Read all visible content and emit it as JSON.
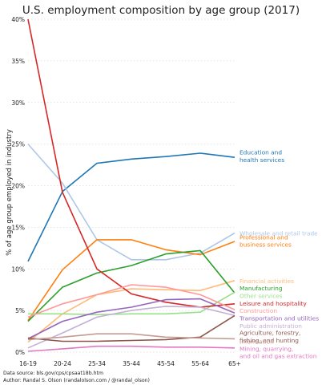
{
  "chart_data": {
    "type": "line",
    "title": "U.S. employment composition by age group (2017)",
    "xlabel": "",
    "ylabel": "% of age group employed in industry",
    "categories": [
      "16-19",
      "20-24",
      "25-34",
      "35-44",
      "45-54",
      "55-64",
      "65+"
    ],
    "ylim": [
      0,
      40
    ],
    "yticks": [
      "0%",
      "5%",
      "10%",
      "15%",
      "20%",
      "25%",
      "30%",
      "35%",
      "40%"
    ],
    "grid": "horizontal dotted",
    "legend": "direct labels at right end of lines",
    "series": [
      {
        "name": "Education and health services",
        "color": "#1f77b4",
        "values": [
          10.9,
          19.3,
          22.7,
          23.2,
          23.5,
          23.9,
          23.4
        ]
      },
      {
        "name": "Wholesale and retail trade",
        "color": "#aec7e8",
        "values": [
          25.0,
          20.3,
          13.5,
          11.1,
          11.1,
          11.9,
          14.3
        ]
      },
      {
        "name": "Professional and business services",
        "color": "#ff7f0e",
        "values": [
          3.8,
          9.9,
          13.5,
          13.5,
          12.3,
          11.7,
          13.3
        ]
      },
      {
        "name": "Financial activities",
        "color": "#ffbb78",
        "values": [
          1.2,
          4.6,
          6.9,
          7.6,
          7.5,
          7.4,
          8.6
        ]
      },
      {
        "name": "Manufacturing",
        "color": "#2ca02c",
        "values": [
          3.7,
          7.8,
          9.5,
          10.4,
          11.8,
          12.2,
          7.1
        ]
      },
      {
        "name": "Other services",
        "color": "#98df8a",
        "values": [
          4.6,
          4.6,
          4.5,
          4.6,
          4.6,
          4.8,
          7.2
        ]
      },
      {
        "name": "Leisure and hospitality",
        "color": "#d62728",
        "values": [
          40.0,
          19.2,
          10.0,
          7.0,
          6.0,
          5.4,
          5.8
        ]
      },
      {
        "name": "Construction",
        "color": "#ff9896",
        "values": [
          4.2,
          5.8,
          6.9,
          8.1,
          7.8,
          6.9,
          5.1
        ]
      },
      {
        "name": "Transportation and utilities",
        "color": "#9467bd",
        "values": [
          1.6,
          3.7,
          4.8,
          5.4,
          6.3,
          6.4,
          4.7
        ]
      },
      {
        "name": "Public administration",
        "color": "#c5b0d5",
        "values": [
          0.5,
          2.3,
          4.2,
          5.0,
          5.5,
          5.4,
          4.4
        ]
      },
      {
        "name": "Agriculture, forestry, fishing, and hunting",
        "color": "#8c564b",
        "values": [
          1.7,
          1.3,
          1.3,
          1.4,
          1.5,
          1.8,
          4.4
        ]
      },
      {
        "name": "Information",
        "color": "#c49c94",
        "values": [
          1.5,
          1.8,
          2.2,
          2.2,
          1.8,
          1.7,
          1.6
        ]
      },
      {
        "name": "Mining, quarrying, and oil and gas extraction",
        "color": "#e377c2",
        "values": [
          0.1,
          0.4,
          0.7,
          0.7,
          0.6,
          0.6,
          0.5
        ]
      }
    ],
    "labels": [
      {
        "lines": [
          "Education and",
          "health services"
        ],
        "color": "#1f77b4",
        "y": 23.6
      },
      {
        "lines": [
          "Wholesale and retail trade"
        ],
        "color": "#aec7e8",
        "y": 14.3
      },
      {
        "lines": [
          "Professional and",
          "business services"
        ],
        "color": "#ff7f0e",
        "y": 13.4
      },
      {
        "lines": [
          "Financial activities"
        ],
        "color": "#ffbb78",
        "y": 8.6
      },
      {
        "lines": [
          "Manufacturing"
        ],
        "color": "#2ca02c",
        "y": 7.7
      },
      {
        "lines": [
          "Other services"
        ],
        "color": "#98df8a",
        "y": 6.8
      },
      {
        "lines": [
          "Leisure and hospitality"
        ],
        "color": "#d62728",
        "y": 5.9
      },
      {
        "lines": [
          "Construction"
        ],
        "color": "#ff9896",
        "y": 5.0
      },
      {
        "lines": [
          "Transportation and utilities"
        ],
        "color": "#9467bd",
        "y": 4.1
      },
      {
        "lines": [
          "Public administration"
        ],
        "color": "#c5b0d5",
        "y": 3.2
      },
      {
        "lines": [
          "Agriculture, forestry,",
          "fishing, and hunting"
        ],
        "color": "#8c564b",
        "y": 1.9
      },
      {
        "lines": [
          "Information"
        ],
        "color": "#c49c94",
        "y": 1.3
      },
      {
        "lines": [
          "Mining, quarrying,",
          "and oil and gas extraction"
        ],
        "color": "#e377c2",
        "y": 0.0
      }
    ]
  },
  "footer": {
    "source": "Data source: bls.gov/cps/cpsaat18b.htm",
    "author": "Author: Randal S. Olson (randalolson.com / @randal_olson)"
  }
}
